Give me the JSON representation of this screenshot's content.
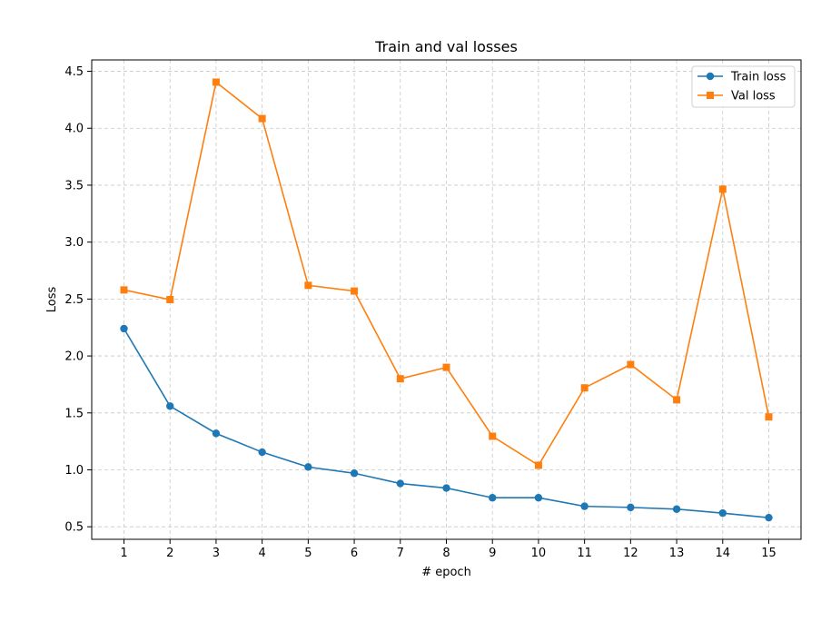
{
  "chart_data": {
    "type": "line",
    "title": "Train and val losses",
    "xlabel": "# epoch",
    "ylabel": "Loss",
    "x": [
      1,
      2,
      3,
      4,
      5,
      6,
      7,
      8,
      9,
      10,
      11,
      12,
      13,
      14,
      15
    ],
    "xlim": [
      0.3,
      15.7
    ],
    "ylim": [
      0.39,
      4.6
    ],
    "yticks": [
      0.5,
      1.0,
      1.5,
      2.0,
      2.5,
      3.0,
      3.5,
      4.0,
      4.5
    ],
    "ytick_labels": [
      "0.5",
      "1.0",
      "1.5",
      "2.0",
      "2.5",
      "3.0",
      "3.5",
      "4.0",
      "4.5"
    ],
    "xtick_labels": [
      "1",
      "2",
      "3",
      "4",
      "5",
      "6",
      "7",
      "8",
      "9",
      "10",
      "11",
      "12",
      "13",
      "14",
      "15"
    ],
    "grid": true,
    "legend_position": "top-right",
    "series": [
      {
        "name": "Train loss",
        "color": "#1f77b4",
        "marker": "circle",
        "values": [
          2.24,
          1.56,
          1.32,
          1.155,
          1.025,
          0.97,
          0.88,
          0.84,
          0.755,
          0.755,
          0.68,
          0.67,
          0.655,
          0.62,
          0.58
        ]
      },
      {
        "name": "Val loss",
        "color": "#ff7f0e",
        "marker": "square",
        "values": [
          2.58,
          2.495,
          4.405,
          4.085,
          2.62,
          2.57,
          1.8,
          1.9,
          1.295,
          1.04,
          1.72,
          1.925,
          1.615,
          3.465,
          1.465
        ]
      }
    ]
  }
}
